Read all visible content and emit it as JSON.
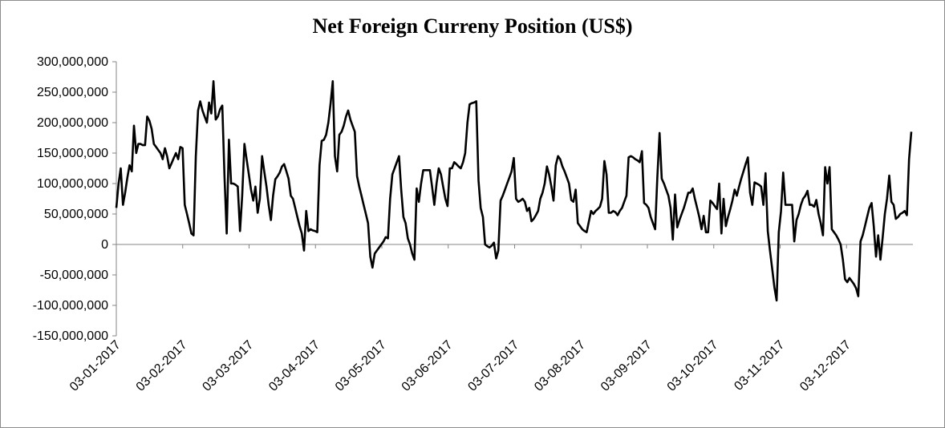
{
  "chart_data": {
    "type": "line",
    "title": "Net Foreign Curreny Position (US$)",
    "xlabel": "",
    "ylabel": "",
    "ylim": [
      -150000000,
      300000000
    ],
    "yticks": [
      300000000,
      250000000,
      200000000,
      150000000,
      100000000,
      50000000,
      0,
      -50000000,
      -100000000,
      -150000000
    ],
    "ytick_labels": [
      "300,000,000",
      "250,000,000",
      "200,000,000",
      "150,000,000",
      "100,000,000",
      "50,000,000",
      "0",
      "-50,000,000",
      "-100,000,000",
      "-150,000,000"
    ],
    "xtick_labels": [
      "03-01-2017",
      "03-02-2017",
      "03-03-2017",
      "03-04-2017",
      "03-05-2017",
      "03-06-2017",
      "03-07-2017",
      "03-08-2017",
      "03-09-2017",
      "03-10-2017",
      "03-11-2017",
      "03-12-2017"
    ],
    "grid": false,
    "line_color": "#000000",
    "series": [
      {
        "values": [
          60000000,
          100000000,
          125000000,
          65000000,
          85000000,
          110000000,
          130000000,
          120000000,
          195000000,
          150000000,
          165000000,
          165000000,
          163000000,
          163000000,
          210000000,
          203000000,
          190000000,
          165000000,
          160000000,
          155000000,
          150000000,
          140000000,
          158000000,
          145000000,
          125000000,
          133000000,
          142000000,
          150000000,
          140000000,
          160000000,
          158000000,
          65000000,
          50000000,
          35000000,
          18000000,
          15000000,
          145000000,
          220000000,
          235000000,
          220000000,
          210000000,
          200000000,
          233000000,
          215000000,
          268000000,
          205000000,
          210000000,
          222000000,
          228000000,
          110000000,
          18000000,
          172000000,
          100000000,
          100000000,
          98000000,
          95000000,
          22000000,
          80000000,
          165000000,
          140000000,
          115000000,
          90000000,
          72000000,
          95000000,
          52000000,
          75000000,
          145000000,
          120000000,
          95000000,
          65000000,
          40000000,
          80000000,
          107000000,
          112000000,
          118000000,
          128000000,
          132000000,
          120000000,
          108000000,
          80000000,
          75000000,
          60000000,
          45000000,
          30000000,
          18000000,
          -10000000,
          55000000,
          22000000,
          25000000,
          23000000,
          22000000,
          20000000,
          130000000,
          170000000,
          172000000,
          180000000,
          200000000,
          230000000,
          268000000,
          145000000,
          120000000,
          180000000,
          185000000,
          195000000,
          210000000,
          220000000,
          205000000,
          195000000,
          185000000,
          112000000,
          95000000,
          80000000,
          65000000,
          50000000,
          35000000,
          -20000000,
          -38000000,
          -15000000,
          -10000000,
          -5000000,
          0,
          5000000,
          12000000,
          10000000,
          75000000,
          115000000,
          125000000,
          135000000,
          145000000,
          90000000,
          45000000,
          35000000,
          10000000,
          0,
          -15000000,
          -25000000,
          92000000,
          70000000,
          100000000,
          122000000,
          122000000,
          122000000,
          122000000,
          95000000,
          65000000,
          100000000,
          125000000,
          115000000,
          95000000,
          75000000,
          63000000,
          125000000,
          125000000,
          135000000,
          132000000,
          128000000,
          125000000,
          135000000,
          150000000,
          200000000,
          230000000,
          232000000,
          233000000,
          235000000,
          105000000,
          60000000,
          45000000,
          0,
          -3000000,
          -5000000,
          -2000000,
          3000000,
          -23000000,
          -10000000,
          72000000,
          80000000,
          90000000,
          100000000,
          110000000,
          120000000,
          142000000,
          75000000,
          70000000,
          72000000,
          75000000,
          70000000,
          55000000,
          60000000,
          38000000,
          42000000,
          48000000,
          55000000,
          75000000,
          85000000,
          100000000,
          128000000,
          115000000,
          95000000,
          72000000,
          130000000,
          145000000,
          140000000,
          128000000,
          120000000,
          110000000,
          100000000,
          73000000,
          70000000,
          90000000,
          35000000,
          30000000,
          25000000,
          22000000,
          20000000,
          38000000,
          55000000,
          50000000,
          55000000,
          58000000,
          62000000,
          75000000,
          137000000,
          115000000,
          52000000,
          52000000,
          55000000,
          53000000,
          48000000,
          55000000,
          60000000,
          70000000,
          80000000,
          143000000,
          145000000,
          143000000,
          140000000,
          138000000,
          135000000,
          153000000,
          68000000,
          65000000,
          60000000,
          45000000,
          35000000,
          25000000,
          110000000,
          183000000,
          108000000,
          100000000,
          90000000,
          80000000,
          60000000,
          8000000,
          82000000,
          28000000,
          40000000,
          50000000,
          60000000,
          72000000,
          85000000,
          85000000,
          92000000,
          75000000,
          60000000,
          45000000,
          25000000,
          47000000,
          20000000,
          20000000,
          72000000,
          68000000,
          63000000,
          58000000,
          100000000,
          18000000,
          75000000,
          30000000,
          45000000,
          58000000,
          72000000,
          90000000,
          80000000,
          95000000,
          108000000,
          120000000,
          132000000,
          143000000,
          85000000,
          65000000,
          102000000,
          100000000,
          98000000,
          95000000,
          65000000,
          117000000,
          22000000,
          -10000000,
          -40000000,
          -70000000,
          -92000000,
          20000000,
          55000000,
          118000000,
          65000000,
          65000000,
          65000000,
          65000000,
          5000000,
          40000000,
          50000000,
          65000000,
          75000000,
          80000000,
          88000000,
          65000000,
          65000000,
          62000000,
          73000000,
          50000000,
          35000000,
          15000000,
          127000000,
          100000000,
          127000000,
          25000000,
          20000000,
          15000000,
          8000000,
          0,
          -25000000,
          -57000000,
          -62000000,
          -55000000,
          -60000000,
          -65000000,
          -72000000,
          -85000000,
          5000000,
          15000000,
          30000000,
          45000000,
          60000000,
          68000000,
          30000000,
          -20000000,
          15000000,
          -25000000,
          10000000,
          50000000,
          75000000,
          113000000,
          70000000,
          65000000,
          42000000,
          45000000,
          50000000,
          52000000,
          55000000,
          48000000,
          140000000,
          185000000
        ]
      }
    ]
  }
}
